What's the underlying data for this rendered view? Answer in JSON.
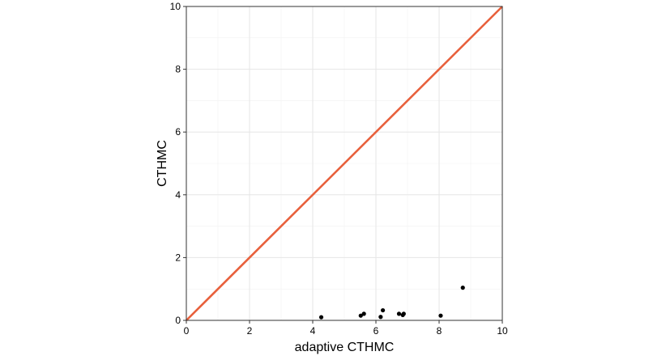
{
  "chart_data": {
    "type": "scatter",
    "title": "",
    "xlabel": "adaptive CTHMC",
    "ylabel": "CTHMC",
    "xlim": [
      0,
      10
    ],
    "ylim": [
      0,
      10
    ],
    "x_ticks": [
      "0",
      "2",
      "4",
      "6",
      "8",
      "10"
    ],
    "y_ticks": [
      "0",
      "2",
      "4",
      "6",
      "8",
      "10"
    ],
    "grid": true,
    "panel_border": true,
    "reference_line": {
      "from": [
        0,
        0
      ],
      "to": [
        10,
        10
      ],
      "color": "#E8603C"
    },
    "point_color": "#000000",
    "points": [
      {
        "x": 4.27,
        "y": 0.1
      },
      {
        "x": 5.52,
        "y": 0.15
      },
      {
        "x": 5.62,
        "y": 0.21
      },
      {
        "x": 6.15,
        "y": 0.11
      },
      {
        "x": 6.22,
        "y": 0.32
      },
      {
        "x": 6.73,
        "y": 0.21
      },
      {
        "x": 6.85,
        "y": 0.17
      },
      {
        "x": 6.88,
        "y": 0.21
      },
      {
        "x": 8.05,
        "y": 0.15
      },
      {
        "x": 8.75,
        "y": 1.04
      }
    ]
  }
}
